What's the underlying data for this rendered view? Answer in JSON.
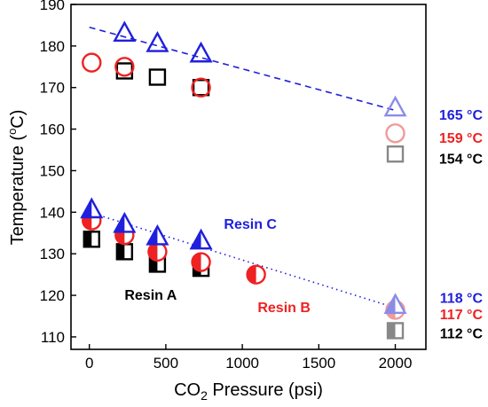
{
  "chart_data": {
    "type": "scatter",
    "title": "",
    "xlabel": {
      "pre": "CO",
      "sub": "2",
      "post": " Pressure (psi)"
    },
    "ylabel": {
      "pre": "Temperature (",
      "sup": "o",
      "post": "C)"
    },
    "xlim": [
      -120,
      2200
    ],
    "ylim": [
      107,
      190
    ],
    "xticks": [
      0,
      500,
      1000,
      1500,
      2000
    ],
    "yticks": [
      110,
      120,
      130,
      140,
      150,
      160,
      170,
      180,
      190
    ],
    "grid": false,
    "legend": "none",
    "colors": {
      "blue": "#1f1fdd",
      "red": "#ee2222",
      "black": "#000000",
      "blue_light": "#8c8ce8",
      "red_light": "#f09a9a",
      "gray": "#888888"
    },
    "series": [
      {
        "marker": "square",
        "fill": "open",
        "color": "black",
        "x": [
          230,
          445,
          730
        ],
        "y": [
          174,
          172.5,
          170
        ]
      },
      {
        "marker": "circle",
        "fill": "open",
        "color": "red",
        "x": [
          15,
          230,
          730
        ],
        "y": [
          176,
          175,
          170
        ]
      },
      {
        "marker": "triangle",
        "fill": "open",
        "color": "blue",
        "x": [
          230,
          445,
          730
        ],
        "y": [
          183,
          180.5,
          178
        ]
      },
      {
        "marker": "square",
        "fill": "open",
        "color": "gray",
        "x": [
          2000
        ],
        "y": [
          154
        ]
      },
      {
        "marker": "circle",
        "fill": "open",
        "color": "red_light",
        "x": [
          2000
        ],
        "y": [
          159
        ]
      },
      {
        "marker": "triangle",
        "fill": "open",
        "color": "blue_light",
        "x": [
          2000
        ],
        "y": [
          165
        ]
      },
      {
        "marker": "square",
        "fill": "half",
        "color": "black",
        "x": [
          15,
          230,
          445,
          730
        ],
        "y": [
          133.5,
          130.5,
          127.5,
          126.5
        ]
      },
      {
        "marker": "circle",
        "fill": "half",
        "color": "red",
        "x": [
          15,
          230,
          445,
          730,
          1090
        ],
        "y": [
          138,
          134.5,
          130.5,
          128,
          125
        ]
      },
      {
        "marker": "triangle",
        "fill": "half",
        "color": "blue",
        "x": [
          15,
          230,
          445,
          730
        ],
        "y": [
          140.5,
          137,
          134,
          133
        ]
      },
      {
        "marker": "square",
        "fill": "half",
        "color": "gray",
        "x": [
          2000
        ],
        "y": [
          111.5
        ]
      },
      {
        "marker": "circle",
        "fill": "half",
        "color": "red_light",
        "x": [
          2000
        ],
        "y": [
          116.5
        ]
      },
      {
        "marker": "triangle",
        "fill": "half",
        "color": "blue_light",
        "x": [
          2000
        ],
        "y": [
          117.5
        ]
      }
    ],
    "trend_lines": [
      {
        "style": "dashed",
        "color": "blue",
        "x": [
          0,
          2000
        ],
        "y": [
          184.5,
          164.5
        ]
      },
      {
        "style": "dotted",
        "color": "blue",
        "x": [
          0,
          2000
        ],
        "y": [
          140,
          117
        ]
      }
    ],
    "series_labels": [
      {
        "text": "Resin A",
        "color": "black",
        "x": 230,
        "y": 119
      },
      {
        "text": "Resin B",
        "color": "red",
        "x": 1100,
        "y": 116
      },
      {
        "text": "Resin C",
        "color": "blue",
        "x": 880,
        "y": 136
      }
    ],
    "end_labels": [
      {
        "text": "165 °C",
        "color": "blue",
        "y": 163.5
      },
      {
        "text": "159 °C",
        "color": "red",
        "y": 158
      },
      {
        "text": "154 °C",
        "color": "black",
        "y": 153
      },
      {
        "text": "118 °C",
        "color": "blue",
        "y": 119.5
      },
      {
        "text": "117 °C",
        "color": "red",
        "y": 115.5
      },
      {
        "text": "112 °C",
        "color": "black",
        "y": 111
      }
    ]
  }
}
